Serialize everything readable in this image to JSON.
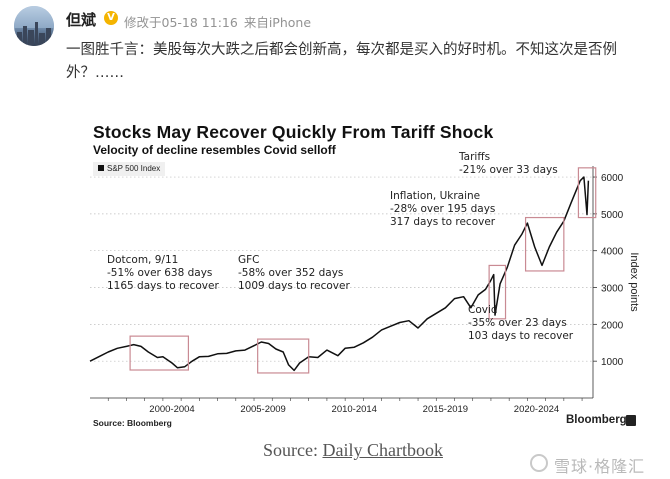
{
  "post": {
    "username": "但斌",
    "verified_icon": "verified-badge-icon",
    "edited_label": "修改于05-18 11:16",
    "source_label": "来自iPhone",
    "text": "一图胜千言：美股每次大跌之后都会创新高，每次都是买入的好时机。不知这次是否例外？……"
  },
  "chart_data": {
    "type": "line",
    "title": "Stocks May Recover Quickly From Tariff Shock",
    "subtitle": "Velocity of decline resembles Covid selloff",
    "legend": [
      "S&P 500 Index"
    ],
    "legend_position": "top-left",
    "ylabel": "Index points",
    "y_axis_side": "right",
    "ylim": [
      0,
      6300
    ],
    "yticks": [
      1000,
      2000,
      3000,
      4000,
      5000,
      6000
    ],
    "xlim": [
      1998,
      2025.6
    ],
    "xtick_labels": [
      "2000-2004",
      "2005-2009",
      "2010-2014",
      "2015-2019",
      "2020-2024"
    ],
    "xtick_centers": [
      2002.5,
      2007.5,
      2012.5,
      2017.5,
      2022.5
    ],
    "grid": "horizontal-dotted",
    "series": [
      {
        "name": "S&P 500 Index",
        "color": "#111111",
        "x": [
          1998.0,
          1998.6,
          1999.0,
          1999.5,
          2000.0,
          2000.4,
          2000.8,
          2001.2,
          2001.7,
          2002.0,
          2002.5,
          2002.8,
          2003.2,
          2003.6,
          2004.0,
          2004.5,
          2005.0,
          2005.5,
          2006.0,
          2006.5,
          2007.0,
          2007.4,
          2007.8,
          2008.2,
          2008.6,
          2008.9,
          2009.2,
          2009.5,
          2010.0,
          2010.5,
          2011.0,
          2011.6,
          2012.0,
          2012.5,
          2013.0,
          2013.5,
          2014.0,
          2014.5,
          2015.0,
          2015.5,
          2016.0,
          2016.5,
          2017.0,
          2017.5,
          2018.0,
          2018.5,
          2018.9,
          2019.3,
          2019.7,
          2020.0,
          2020.15,
          2020.22,
          2020.5,
          2020.9,
          2021.3,
          2021.7,
          2022.0,
          2022.4,
          2022.8,
          2023.2,
          2023.6,
          2024.0,
          2024.4,
          2024.9,
          2025.1,
          2025.27,
          2025.35
        ],
        "y": [
          1000,
          1150,
          1250,
          1350,
          1400,
          1450,
          1400,
          1250,
          1100,
          1120,
          950,
          820,
          850,
          1000,
          1120,
          1130,
          1200,
          1210,
          1280,
          1300,
          1420,
          1520,
          1480,
          1330,
          1250,
          900,
          750,
          950,
          1120,
          1100,
          1300,
          1150,
          1350,
          1380,
          1500,
          1650,
          1850,
          1950,
          2050,
          2100,
          1900,
          2150,
          2300,
          2450,
          2700,
          2750,
          2450,
          2800,
          2950,
          3200,
          3350,
          2250,
          3100,
          3550,
          4150,
          4450,
          4750,
          4100,
          3600,
          4100,
          4500,
          4800,
          5300,
          5900,
          6000,
          4980,
          5900
        ]
      }
    ],
    "annotations": [
      {
        "lines": [
          "Dotcom, 9/11",
          "-51% over 638 days",
          "1165 days to recover"
        ],
        "box_x": [
          2000.2,
          2003.4
        ],
        "box_y": [
          760,
          1680
        ]
      },
      {
        "lines": [
          "GFC",
          "-58% over 352 days",
          "1009 days to recover"
        ],
        "box_x": [
          2007.2,
          2010.0
        ],
        "box_y": [
          680,
          1600
        ]
      },
      {
        "lines": [
          "Covid",
          "-35% over 23 days",
          "103 days to recover"
        ],
        "box_x": [
          2019.9,
          2020.8
        ],
        "box_y": [
          2150,
          3600
        ]
      },
      {
        "lines": [
          "Inflation, Ukraine",
          "-28% over 195 days",
          "317 days to recover"
        ],
        "box_x": [
          2021.9,
          2024.0
        ],
        "box_y": [
          3450,
          4900
        ]
      },
      {
        "lines": [
          "Tariffs",
          "-21% over 33 days"
        ],
        "box_x": [
          2024.8,
          2025.75
        ],
        "box_y": [
          4900,
          6250
        ]
      }
    ],
    "source": "Source: Bloomberg",
    "brand": "Bloomberg"
  },
  "credit": {
    "prefix": "Source: ",
    "link_text": "Daily Chartbook"
  },
  "watermark": {
    "text": "雪球·格隆汇",
    "icon": "snowball-logo-icon"
  }
}
